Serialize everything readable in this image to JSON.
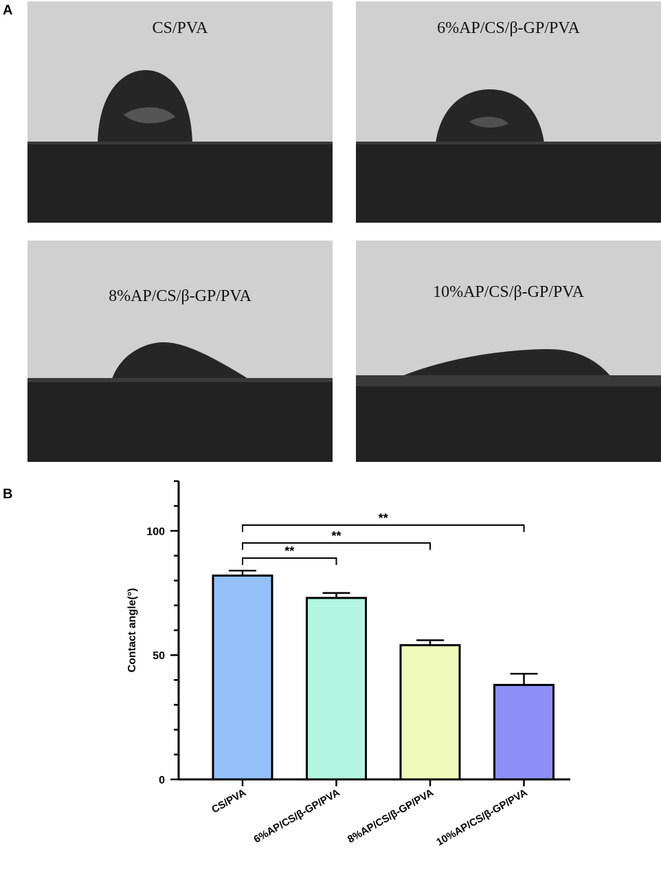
{
  "panel_a": {
    "letter": "A",
    "photos": [
      {
        "label": "CS/PVA"
      },
      {
        "label": "6%AP/CS/β-GP/PVA"
      },
      {
        "label": "8%AP/CS/β-GP/PVA"
      },
      {
        "label": "10%AP/CS/β-GP/PVA"
      }
    ]
  },
  "panel_b": {
    "letter": "B"
  },
  "chart_data": {
    "type": "bar",
    "title": "",
    "xlabel": "",
    "ylabel": "Contact angle(°)",
    "ylim": [
      0,
      120
    ],
    "yticks": [
      0,
      50,
      100
    ],
    "yticks_labels": [
      "0",
      "50",
      "100"
    ],
    "categories": [
      "CS/PVA",
      "6%AP/CS/β-GP/PVA",
      "8%AP/CS/β-GP/PVA",
      "10%AP/CS/β-GP/PVA"
    ],
    "values": [
      82,
      73,
      54,
      38
    ],
    "errors": [
      2,
      2,
      2,
      4.5
    ],
    "colors": [
      "#93c1f7",
      "#b4f5e1",
      "#f0fbbb",
      "#8e8ff9"
    ],
    "significance": [
      {
        "from": 0,
        "to": 1,
        "label": "**"
      },
      {
        "from": 0,
        "to": 2,
        "label": "**"
      },
      {
        "from": 0,
        "to": 3,
        "label": "**"
      }
    ],
    "grid": false,
    "legend": "none"
  }
}
